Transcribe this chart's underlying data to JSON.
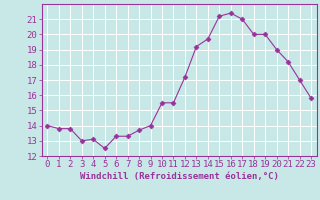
{
  "x": [
    0,
    1,
    2,
    3,
    4,
    5,
    6,
    7,
    8,
    9,
    10,
    11,
    12,
    13,
    14,
    15,
    16,
    17,
    18,
    19,
    20,
    21,
    22,
    23
  ],
  "y": [
    14.0,
    13.8,
    13.8,
    13.0,
    13.1,
    12.5,
    13.3,
    13.3,
    13.7,
    14.0,
    15.5,
    15.5,
    17.2,
    19.2,
    19.7,
    21.2,
    21.4,
    21.0,
    20.0,
    20.0,
    19.0,
    18.2,
    17.0,
    15.8
  ],
  "line_color": "#993399",
  "marker": "D",
  "marker_size": 2.5,
  "background_color": "#c8e8e8",
  "grid_color": "#ffffff",
  "xlabel": "Windchill (Refroidissement éolien,°C)",
  "ylim": [
    12,
    22
  ],
  "xlim": [
    -0.5,
    23.5
  ],
  "yticks": [
    12,
    13,
    14,
    15,
    16,
    17,
    18,
    19,
    20,
    21
  ],
  "xticks": [
    0,
    1,
    2,
    3,
    4,
    5,
    6,
    7,
    8,
    9,
    10,
    11,
    12,
    13,
    14,
    15,
    16,
    17,
    18,
    19,
    20,
    21,
    22,
    23
  ],
  "tick_color": "#993399",
  "label_color": "#993399",
  "font_size": 6.5
}
